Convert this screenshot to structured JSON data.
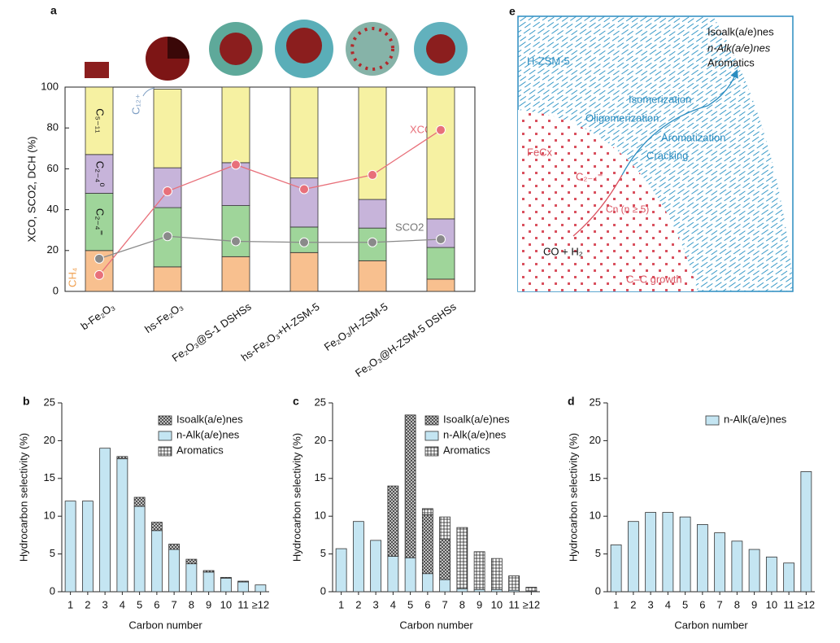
{
  "chart_data": [
    {
      "panel": "a",
      "type": "bar",
      "categories": [
        "b-Fe₂O₃",
        "hs-Fe₂O₃",
        "Fe₂O₃@S-1 DSHSs",
        "hs-Fe₂O₃+H-ZSM-5",
        "Fe₂O₃/H-ZSM-5",
        "Fe₂O₃@H-ZSM-5 DSHSs"
      ],
      "series": [
        {
          "name": "CH₄",
          "type": "bar",
          "color": "#f8c08f",
          "values": [
            20,
            12,
            17,
            19,
            15,
            6
          ]
        },
        {
          "name": "C₂₋₄⁼",
          "type": "bar",
          "color": "#9fd59a",
          "values": [
            28,
            29,
            25,
            12.5,
            16,
            15.5
          ]
        },
        {
          "name": "C₂₋₄⁰",
          "type": "bar",
          "color": "#c7b4da",
          "values": [
            19,
            19.5,
            21,
            24,
            14,
            14
          ]
        },
        {
          "name": "C₅₋₁₁",
          "type": "bar",
          "color": "#f6f1a2",
          "values": [
            33,
            38.5,
            37,
            44.5,
            55,
            64.5
          ]
        },
        {
          "name": "XCO",
          "type": "line",
          "color": "#e8707a",
          "values": [
            8,
            49,
            62,
            50,
            57,
            79
          ]
        },
        {
          "name": "SCO2",
          "type": "line",
          "color": "#8a8a8a",
          "values": [
            16,
            27,
            24.5,
            24,
            24,
            25.5
          ]
        }
      ],
      "annotation": "C₁₂₊",
      "ylabel": "XCO, SCO2, DCH (%)",
      "ylim": [
        0,
        100
      ],
      "yticks": [
        0,
        20,
        40,
        60,
        80,
        100
      ]
    },
    {
      "panel": "b",
      "type": "bar",
      "categories": [
        "1",
        "2",
        "3",
        "4",
        "5",
        "6",
        "7",
        "8",
        "9",
        "10",
        "11",
        "≥12"
      ],
      "series": [
        {
          "name": "n-Alk(a/e)nes",
          "color": "#c4e5f2",
          "values": [
            12,
            12,
            19,
            17.6,
            11.3,
            8.1,
            5.6,
            3.7,
            2.6,
            1.8,
            1.3,
            0.9
          ]
        },
        {
          "name": "Isoalk(a/e)nes",
          "color": "#d8d8d8",
          "hatch": "cross",
          "values": [
            0,
            0,
            0,
            0.3,
            1.2,
            1.1,
            0.7,
            0.6,
            0.2,
            0.1,
            0.1,
            0
          ]
        },
        {
          "name": "Aromatics",
          "color": "#ffffff",
          "hatch": "grid",
          "values": [
            0,
            0,
            0,
            0,
            0,
            0,
            0,
            0,
            0,
            0,
            0,
            0
          ]
        }
      ],
      "legend_order": [
        1,
        0,
        2
      ],
      "xlabel": "Carbon number",
      "ylabel": "Hydrocarbon selectivity (%)",
      "ylim": [
        0,
        25
      ],
      "yticks": [
        0,
        5,
        10,
        15,
        20,
        25
      ]
    },
    {
      "panel": "c",
      "type": "bar",
      "categories": [
        "1",
        "2",
        "3",
        "4",
        "5",
        "6",
        "7",
        "8",
        "9",
        "10",
        "11",
        "≥12"
      ],
      "series": [
        {
          "name": "n-Alk(a/e)nes",
          "color": "#c4e5f2",
          "values": [
            5.7,
            9.3,
            6.8,
            4.7,
            4.5,
            2.4,
            1.6,
            0.4,
            0.3,
            0.3,
            0.2,
            0.1
          ]
        },
        {
          "name": "Isoalk(a/e)nes",
          "color": "#d8d8d8",
          "hatch": "cross",
          "values": [
            0,
            0,
            0,
            9.3,
            18.9,
            7.8,
            5.4,
            0,
            0,
            0,
            0,
            0
          ]
        },
        {
          "name": "Aromatics",
          "color": "#ffffff",
          "hatch": "grid",
          "values": [
            0,
            0,
            0,
            0,
            0,
            0.8,
            2.9,
            8.1,
            5,
            4.1,
            1.9,
            0.5
          ]
        }
      ],
      "legend_order": [
        1,
        0,
        2
      ],
      "xlabel": "Carbon number",
      "ylabel": "Hydrocarbon selectivity (%)",
      "ylim": [
        0,
        25
      ],
      "yticks": [
        0,
        5,
        10,
        15,
        20,
        25
      ]
    },
    {
      "panel": "d",
      "type": "bar",
      "categories": [
        "1",
        "2",
        "3",
        "4",
        "5",
        "6",
        "7",
        "8",
        "9",
        "10",
        "11",
        "≥12"
      ],
      "series": [
        {
          "name": "n-Alk(a/e)nes",
          "color": "#c4e5f2",
          "values": [
            6.2,
            9.3,
            10.5,
            10.5,
            9.9,
            8.9,
            7.8,
            6.7,
            5.6,
            4.6,
            3.8,
            15.9
          ]
        }
      ],
      "legend_order": [
        0
      ],
      "xlabel": "Carbon number",
      "ylabel": "Hydrocarbon selectivity (%)",
      "ylim": [
        0,
        25
      ],
      "yticks": [
        0,
        5,
        10,
        15,
        20,
        25
      ]
    }
  ],
  "diagram": {
    "panel": "e",
    "products": [
      "Isoalk(a/e)nes",
      "n-Alk(a/e)nes",
      "Aromatics"
    ],
    "zeolite": "H-ZSM-5",
    "steps": [
      "Isomerization",
      "Oligomerization",
      "Aromatization",
      "Cracking"
    ],
    "catalyst": "FeCx",
    "intermediates": [
      "C₂₋₄⁼",
      "Cn (n ≥ 5)"
    ],
    "feed": "CO + H₂",
    "growth": "C–C growth"
  }
}
